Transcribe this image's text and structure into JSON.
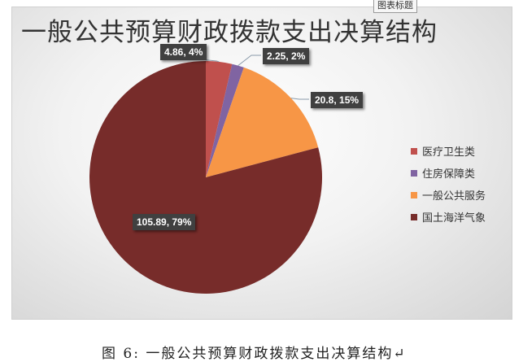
{
  "tooltip": "图表标题",
  "caption": "图 6: 一般公共预算财政拨款支出决算结构↵",
  "chart_data": {
    "type": "pie",
    "title": "一般公共预算财政拨款支出决算结构",
    "legend_position": "right",
    "categories": [
      "医疗卫生类",
      "住房保障类",
      "一般公共服务",
      "国土海洋气象"
    ],
    "values": [
      4.86,
      2.25,
      20.8,
      105.89
    ],
    "data_labels": [
      "4.86, 4%",
      "2.25, 2%",
      "20.8, 15%",
      "105.89, 79%"
    ],
    "colors": [
      "#c0504d",
      "#8064a2",
      "#f79646",
      "#772c2a"
    ]
  }
}
